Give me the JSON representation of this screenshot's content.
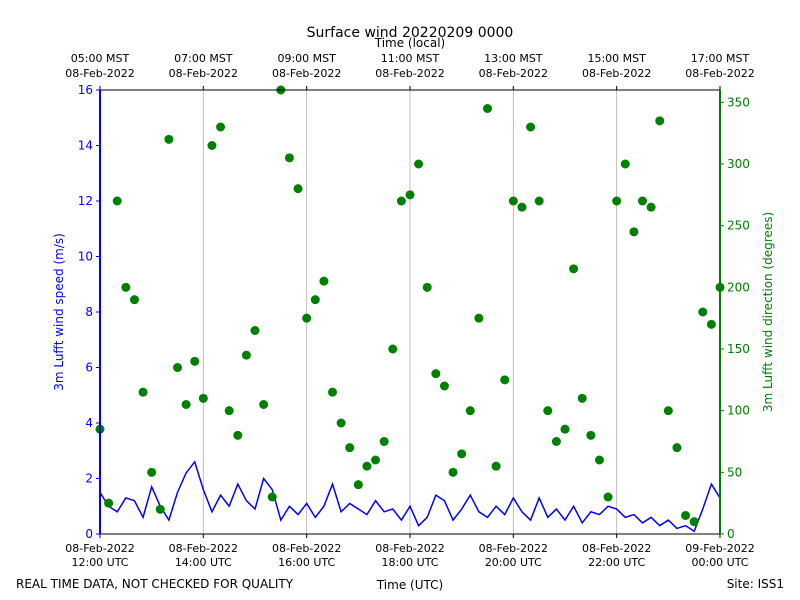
{
  "chart_data": {
    "type": "line",
    "title": "Surface wind 20220209 0000",
    "x2label": "Time (local)",
    "xlabel": "Time (UTC)",
    "ylabel": "3m Lufft wind speed (m/s)",
    "y2label": "3m Lufft wind direction (degrees)",
    "footer_left": "REAL TIME DATA, NOT CHECKED FOR QUALITY",
    "footer_right": "Site: ISS1",
    "grid": true,
    "xlim": [
      "2022-02-08 12:00",
      "2022-02-09 00:00"
    ],
    "xticks": [
      {
        "value": "2022-02-08 12:00",
        "label": [
          "08-Feb-2022",
          "12:00 UTC"
        ]
      },
      {
        "value": "2022-02-08 14:00",
        "label": [
          "08-Feb-2022",
          "14:00 UTC"
        ]
      },
      {
        "value": "2022-02-08 16:00",
        "label": [
          "08-Feb-2022",
          "16:00 UTC"
        ]
      },
      {
        "value": "2022-02-08 18:00",
        "label": [
          "08-Feb-2022",
          "18:00 UTC"
        ]
      },
      {
        "value": "2022-02-08 20:00",
        "label": [
          "08-Feb-2022",
          "20:00 UTC"
        ]
      },
      {
        "value": "2022-02-08 22:00",
        "label": [
          "08-Feb-2022",
          "22:00 UTC"
        ]
      },
      {
        "value": "2022-02-09 00:00",
        "label": [
          "09-Feb-2022",
          "00:00 UTC"
        ]
      }
    ],
    "x2ticks": [
      {
        "value": "2022-02-08 12:00",
        "label": [
          "05:00 MST",
          "08-Feb-2022"
        ]
      },
      {
        "value": "2022-02-08 14:00",
        "label": [
          "07:00 MST",
          "08-Feb-2022"
        ]
      },
      {
        "value": "2022-02-08 16:00",
        "label": [
          "09:00 MST",
          "08-Feb-2022"
        ]
      },
      {
        "value": "2022-02-08 18:00",
        "label": [
          "11:00 MST",
          "08-Feb-2022"
        ]
      },
      {
        "value": "2022-02-08 20:00",
        "label": [
          "13:00 MST",
          "08-Feb-2022"
        ]
      },
      {
        "value": "2022-02-08 22:00",
        "label": [
          "15:00 MST",
          "08-Feb-2022"
        ]
      },
      {
        "value": "2022-02-09 00:00",
        "label": [
          "17:00 MST",
          "08-Feb-2022"
        ]
      }
    ],
    "ylim": [
      0,
      16
    ],
    "yticks": [
      0,
      2,
      4,
      6,
      8,
      10,
      12,
      14,
      16
    ],
    "y2lim": [
      0,
      360
    ],
    "y2ticks": [
      0,
      50,
      100,
      150,
      200,
      250,
      300,
      350
    ],
    "x": [
      "2022-02-08 12:00",
      "2022-02-08 12:10",
      "2022-02-08 12:20",
      "2022-02-08 12:30",
      "2022-02-08 12:40",
      "2022-02-08 12:50",
      "2022-02-08 13:00",
      "2022-02-08 13:10",
      "2022-02-08 13:20",
      "2022-02-08 13:30",
      "2022-02-08 13:40",
      "2022-02-08 13:50",
      "2022-02-08 14:00",
      "2022-02-08 14:10",
      "2022-02-08 14:20",
      "2022-02-08 14:30",
      "2022-02-08 14:40",
      "2022-02-08 14:50",
      "2022-02-08 15:00",
      "2022-02-08 15:10",
      "2022-02-08 15:20",
      "2022-02-08 15:30",
      "2022-02-08 15:40",
      "2022-02-08 15:50",
      "2022-02-08 16:00",
      "2022-02-08 16:10",
      "2022-02-08 16:20",
      "2022-02-08 16:30",
      "2022-02-08 16:40",
      "2022-02-08 16:50",
      "2022-02-08 17:00",
      "2022-02-08 17:10",
      "2022-02-08 17:20",
      "2022-02-08 17:30",
      "2022-02-08 17:40",
      "2022-02-08 17:50",
      "2022-02-08 18:00",
      "2022-02-08 18:10",
      "2022-02-08 18:20",
      "2022-02-08 18:30",
      "2022-02-08 18:40",
      "2022-02-08 18:50",
      "2022-02-08 19:00",
      "2022-02-08 19:10",
      "2022-02-08 19:20",
      "2022-02-08 19:30",
      "2022-02-08 19:40",
      "2022-02-08 19:50",
      "2022-02-08 20:00",
      "2022-02-08 20:10",
      "2022-02-08 20:20",
      "2022-02-08 20:30",
      "2022-02-08 20:40",
      "2022-02-08 20:50",
      "2022-02-08 21:00",
      "2022-02-08 21:10",
      "2022-02-08 21:20",
      "2022-02-08 21:30",
      "2022-02-08 21:40",
      "2022-02-08 21:50",
      "2022-02-08 22:00",
      "2022-02-08 22:10",
      "2022-02-08 22:20",
      "2022-02-08 22:30",
      "2022-02-08 22:40",
      "2022-02-08 22:50",
      "2022-02-08 23:00",
      "2022-02-08 23:10",
      "2022-02-08 23:20",
      "2022-02-08 23:30",
      "2022-02-08 23:40",
      "2022-02-08 23:50",
      "2022-02-09 00:00"
    ],
    "series": [
      {
        "name": "3m Lufft wind speed (m/s)",
        "type": "line",
        "axis": "y",
        "color": "#0000ff",
        "values": [
          1.5,
          1.0,
          0.8,
          1.3,
          1.2,
          0.6,
          1.7,
          1.0,
          0.5,
          1.5,
          2.2,
          2.6,
          1.6,
          0.8,
          1.4,
          1.0,
          1.8,
          1.2,
          0.9,
          2.0,
          1.6,
          0.5,
          1.0,
          0.7,
          1.1,
          0.6,
          1.0,
          1.8,
          0.8,
          1.1,
          0.9,
          0.7,
          1.2,
          0.8,
          0.9,
          0.5,
          1.0,
          0.3,
          0.6,
          1.4,
          1.2,
          0.5,
          0.9,
          1.4,
          0.8,
          0.6,
          1.0,
          0.7,
          1.3,
          0.8,
          0.5,
          1.3,
          0.6,
          0.9,
          0.5,
          1.0,
          0.4,
          0.8,
          0.7,
          1.0,
          0.9,
          0.6,
          0.7,
          0.4,
          0.6,
          0.3,
          0.5,
          0.2,
          0.3,
          0.1,
          0.9,
          1.8,
          1.3
        ]
      },
      {
        "name": "3m Lufft wind direction (degrees)",
        "type": "scatter",
        "axis": "y2",
        "color": "#008000",
        "values": [
          85,
          25,
          270,
          200,
          190,
          115,
          50,
          20,
          320,
          135,
          105,
          140,
          110,
          315,
          330,
          100,
          80,
          145,
          165,
          105,
          30,
          360,
          305,
          280,
          175,
          190,
          205,
          115,
          90,
          70,
          40,
          55,
          60,
          75,
          150,
          270,
          275,
          300,
          200,
          130,
          120,
          50,
          65,
          100,
          175,
          345,
          55,
          125,
          270,
          265,
          330,
          270,
          100,
          75,
          85,
          215,
          110,
          80,
          60,
          30,
          270,
          300,
          245,
          270,
          265,
          335,
          100,
          70,
          15,
          10,
          180,
          170,
          200
        ]
      }
    ]
  }
}
